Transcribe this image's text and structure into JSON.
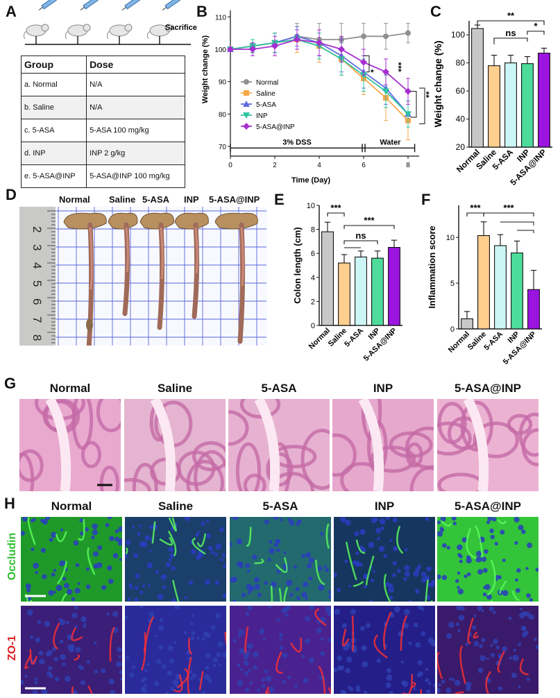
{
  "panels": {
    "A": "A",
    "B": "B",
    "C": "C",
    "D": "D",
    "E": "E",
    "F": "F",
    "G": "G",
    "H": "H"
  },
  "panel_a": {
    "sacrifice_label": "Sacrifice",
    "table_headers": [
      "Group",
      "Dose"
    ],
    "rows": [
      {
        "group": "a.   Normal",
        "dose": "N/A"
      },
      {
        "group": "b.   Saline",
        "dose": "N/A"
      },
      {
        "group": "c.  5-ASA",
        "dose": "5-ASA 100 mg/kg"
      },
      {
        "group": "d.   INP",
        "dose": "INP 2 g/kg"
      },
      {
        "group": "e.  5-ASA@INP",
        "dose": "5-ASA@INP 100 mg/kg"
      }
    ]
  },
  "panel_d": {
    "labels": [
      "Normal",
      "Saline",
      "5-ASA",
      "INP",
      "5-ASA@INP"
    ],
    "ruler_numbers": [
      "2",
      "3",
      "4",
      "5",
      "6",
      "7",
      "8"
    ]
  },
  "panel_g": {
    "labels": [
      "Normal",
      "Saline",
      "5-ASA",
      "INP",
      "5-ASA@INP"
    ]
  },
  "panel_h": {
    "labels": [
      "Normal",
      "Saline",
      "5-ASA",
      "INP",
      "5-ASA@INP"
    ],
    "row_labels": [
      "Occludin",
      "ZO-1"
    ]
  },
  "colors": {
    "normal": "#c8c8c8",
    "saline": "#ffcf8f",
    "asa": "#ccf5f5",
    "inp": "#4ddc9c",
    "asainp": "#9b14e0",
    "line_normal": "#909090",
    "line_saline": "#f7a64a",
    "line_asa": "#5d6ce0",
    "line_inp": "#2ec4a0",
    "line_asainp": "#a62ed0"
  },
  "chart_data": [
    {
      "id": "B",
      "type": "line",
      "xlabel": "Time (Day)",
      "ylabel": "Weight change (%)",
      "x": [
        0,
        1,
        2,
        3,
        4,
        5,
        6,
        7,
        8
      ],
      "xlim": [
        0,
        8.5
      ],
      "ylim": [
        67,
        112
      ],
      "xticks": [
        "0",
        "2",
        "4",
        "6",
        "8"
      ],
      "yticks": [
        "70",
        "80",
        "90",
        "100",
        "110"
      ],
      "series": [
        {
          "name": "Normal",
          "values": [
            100,
            101,
            102,
            104,
            103,
            103,
            104,
            104,
            105
          ],
          "err": [
            0,
            2,
            3,
            4,
            5,
            5,
            4,
            4,
            3
          ]
        },
        {
          "name": "Saline",
          "values": [
            100,
            101,
            102,
            103,
            101,
            97,
            91,
            85,
            78
          ],
          "err": [
            0,
            2,
            3,
            4,
            5,
            5,
            5,
            7,
            6
          ]
        },
        {
          "name": "5-ASA",
          "values": [
            100,
            101,
            102,
            104,
            102,
            98,
            93,
            88,
            80
          ],
          "err": [
            0,
            2,
            3,
            3,
            4,
            5,
            5,
            5,
            4
          ]
        },
        {
          "name": "INP",
          "values": [
            100,
            101,
            102,
            103,
            101,
            97,
            92,
            87,
            80
          ],
          "err": [
            0,
            2,
            3,
            3,
            4,
            5,
            5,
            5,
            4
          ]
        },
        {
          "name": "5-ASA@INP",
          "values": [
            100,
            100,
            101,
            103,
            102,
            100,
            96,
            93,
            87
          ],
          "err": [
            0,
            2,
            3,
            3,
            4,
            4,
            4,
            4,
            4
          ]
        }
      ],
      "annotations": {
        "phase1": "3% DSS",
        "phase2": "Water",
        "sig_star": "*",
        "sig_2": "**",
        "sig_3": "***",
        "sig_3b": "***"
      }
    },
    {
      "id": "C",
      "type": "bar",
      "ylabel": "Weight change (%)",
      "categories": [
        "Normal",
        "Saline",
        "5-ASA",
        "INP",
        "5-ASA@INP"
      ],
      "values": [
        104.5,
        78,
        80,
        79.5,
        87
      ],
      "err": [
        2.5,
        7.5,
        5.5,
        5,
        3.5
      ],
      "ylim": [
        20,
        110
      ],
      "yticks": [
        "20",
        "40",
        "60",
        "80",
        "100"
      ],
      "annotations": {
        "sig_top": "**",
        "sig_ns": "ns",
        "sig_star": "*"
      }
    },
    {
      "id": "E",
      "type": "bar",
      "ylabel": "Colon length (cm)",
      "categories": [
        "Normal",
        "Saline",
        "5-ASA",
        "INP",
        "5-ASA@INP"
      ],
      "values": [
        7.8,
        5.2,
        5.7,
        5.6,
        6.5
      ],
      "err": [
        0.8,
        0.7,
        0.5,
        0.6,
        0.6
      ],
      "ylim": [
        0,
        10
      ],
      "yticks": [
        "0",
        "2",
        "4",
        "6",
        "8",
        "10"
      ],
      "annotations": {
        "sig_left": "***",
        "sig_ns": "ns",
        "sig_right": "***"
      }
    },
    {
      "id": "F",
      "type": "bar",
      "ylabel": "Inflammation score",
      "categories": [
        "Normal",
        "Saline",
        "5-ASA",
        "INP",
        "5-ASA@INP"
      ],
      "values": [
        1.1,
        10.2,
        9.1,
        8.3,
        4.3
      ],
      "err": [
        0.8,
        1.5,
        1.2,
        1.3,
        2.1
      ],
      "ylim": [
        0,
        13.5
      ],
      "yticks": [
        "0",
        "5",
        "10"
      ],
      "annotations": {
        "sig_left": "***",
        "sig_right": "***"
      }
    }
  ]
}
